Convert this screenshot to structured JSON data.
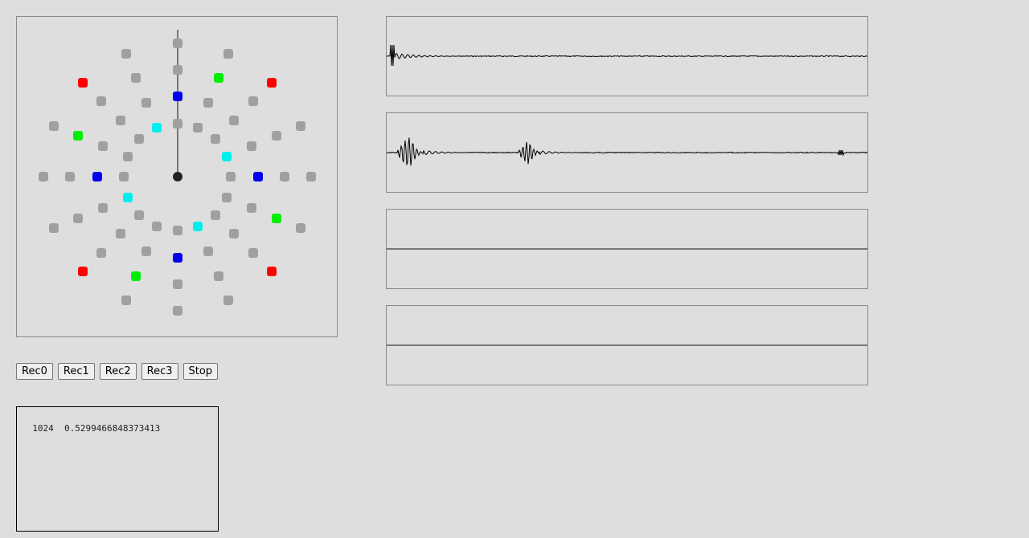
{
  "buttons": [
    {
      "id": "rec0",
      "label": "Rec0"
    },
    {
      "id": "rec1",
      "label": "Rec1"
    },
    {
      "id": "rec2",
      "label": "Rec2"
    },
    {
      "id": "rec3",
      "label": "Rec3"
    },
    {
      "id": "stop",
      "label": "Stop"
    }
  ],
  "log": {
    "text": "1024  0.5299466848373413"
  },
  "colors": {
    "background": "#dedede",
    "dot_gray": "#a0a0a0",
    "dot_red": "#ff0000",
    "dot_green": "#00ee00",
    "dot_blue": "#0000ee",
    "dot_cyan": "#00eeee",
    "dot_center": "#222222",
    "trace": "#000000"
  },
  "waveforms": [
    {
      "id": "wave0",
      "signal": "impulse-decay"
    },
    {
      "id": "wave1",
      "signal": "double-burst"
    },
    {
      "id": "wave2",
      "signal": "flat"
    },
    {
      "id": "wave3",
      "signal": "flat"
    }
  ]
}
